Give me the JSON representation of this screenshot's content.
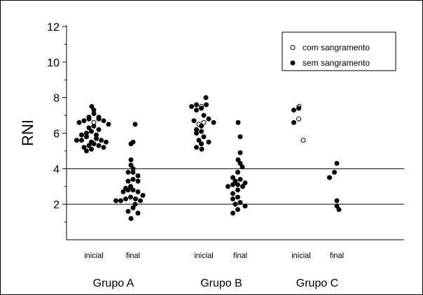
{
  "chart_data": {
    "type": "scatter",
    "ylabel": "RNI",
    "ylim": [
      0,
      12
    ],
    "yticks": [
      2,
      4,
      6,
      8,
      10,
      12
    ],
    "reference_lines": [
      2,
      4
    ],
    "groups": [
      {
        "label": "Grupo A",
        "phases": [
          "inicial",
          "final"
        ]
      },
      {
        "label": "Grupo B",
        "phases": [
          "inicial",
          "final"
        ]
      },
      {
        "label": "Grupo C",
        "phases": [
          "inicial",
          "final"
        ]
      }
    ],
    "legend": {
      "placement": "top-right",
      "entries": [
        {
          "label": "com sangramento",
          "marker": "open-circle"
        },
        {
          "label": "sem sangramento",
          "marker": "filled-circle"
        }
      ]
    },
    "series": [
      {
        "name": "com sangramento",
        "marker": "open-circle",
        "points": [
          {
            "group": "Grupo A",
            "phase": "inicial",
            "y": 6.6
          },
          {
            "group": "Grupo A",
            "phase": "inicial",
            "y": 5.5
          },
          {
            "group": "Grupo B",
            "phase": "inicial",
            "y": 7.5
          },
          {
            "group": "Grupo B",
            "phase": "inicial",
            "y": 6.6
          },
          {
            "group": "Grupo B",
            "phase": "inicial",
            "y": 6.5
          },
          {
            "group": "Grupo C",
            "phase": "inicial",
            "y": 7.5
          },
          {
            "group": "Grupo C",
            "phase": "inicial",
            "y": 6.8
          },
          {
            "group": "Grupo C",
            "phase": "inicial",
            "y": 5.6
          }
        ]
      },
      {
        "name": "sem sangramento",
        "marker": "filled-circle",
        "points": [
          {
            "group": "Grupo A",
            "phase": "inicial",
            "y": 7.5
          },
          {
            "group": "Grupo A",
            "phase": "inicial",
            "y": 7.3
          },
          {
            "group": "Grupo A",
            "phase": "inicial",
            "y": 7.1
          },
          {
            "group": "Grupo A",
            "phase": "inicial",
            "y": 6.9
          },
          {
            "group": "Grupo A",
            "phase": "inicial",
            "y": 6.9
          },
          {
            "group": "Grupo A",
            "phase": "inicial",
            "y": 6.8
          },
          {
            "group": "Grupo A",
            "phase": "inicial",
            "y": 6.8
          },
          {
            "group": "Grupo A",
            "phase": "inicial",
            "y": 6.7
          },
          {
            "group": "Grupo A",
            "phase": "inicial",
            "y": 6.7
          },
          {
            "group": "Grupo A",
            "phase": "inicial",
            "y": 6.6
          },
          {
            "group": "Grupo A",
            "phase": "inicial",
            "y": 6.5
          },
          {
            "group": "Grupo A",
            "phase": "inicial",
            "y": 6.4
          },
          {
            "group": "Grupo A",
            "phase": "inicial",
            "y": 6.3
          },
          {
            "group": "Grupo A",
            "phase": "inicial",
            "y": 6.2
          },
          {
            "group": "Grupo A",
            "phase": "inicial",
            "y": 6.1
          },
          {
            "group": "Grupo A",
            "phase": "inicial",
            "y": 6.0
          },
          {
            "group": "Grupo A",
            "phase": "inicial",
            "y": 5.9
          },
          {
            "group": "Grupo A",
            "phase": "inicial",
            "y": 5.9
          },
          {
            "group": "Grupo A",
            "phase": "inicial",
            "y": 5.8
          },
          {
            "group": "Grupo A",
            "phase": "inicial",
            "y": 5.7
          },
          {
            "group": "Grupo A",
            "phase": "inicial",
            "y": 5.6
          },
          {
            "group": "Grupo A",
            "phase": "inicial",
            "y": 5.6
          },
          {
            "group": "Grupo A",
            "phase": "inicial",
            "y": 5.6
          },
          {
            "group": "Grupo A",
            "phase": "inicial",
            "y": 5.5
          },
          {
            "group": "Grupo A",
            "phase": "inicial",
            "y": 5.5
          },
          {
            "group": "Grupo A",
            "phase": "inicial",
            "y": 5.4
          },
          {
            "group": "Grupo A",
            "phase": "inicial",
            "y": 5.3
          },
          {
            "group": "Grupo A",
            "phase": "inicial",
            "y": 5.3
          },
          {
            "group": "Grupo A",
            "phase": "inicial",
            "y": 5.2
          },
          {
            "group": "Grupo A",
            "phase": "inicial",
            "y": 5.2
          },
          {
            "group": "Grupo A",
            "phase": "inicial",
            "y": 5.1
          },
          {
            "group": "Grupo A",
            "phase": "inicial",
            "y": 5.0
          },
          {
            "group": "Grupo A",
            "phase": "final",
            "y": 6.5
          },
          {
            "group": "Grupo A",
            "phase": "final",
            "y": 5.5
          },
          {
            "group": "Grupo A",
            "phase": "final",
            "y": 5.4
          },
          {
            "group": "Grupo A",
            "phase": "final",
            "y": 4.5
          },
          {
            "group": "Grupo A",
            "phase": "final",
            "y": 4.2
          },
          {
            "group": "Grupo A",
            "phase": "final",
            "y": 4.0
          },
          {
            "group": "Grupo A",
            "phase": "final",
            "y": 3.8
          },
          {
            "group": "Grupo A",
            "phase": "final",
            "y": 3.8
          },
          {
            "group": "Grupo A",
            "phase": "final",
            "y": 3.6
          },
          {
            "group": "Grupo A",
            "phase": "final",
            "y": 3.4
          },
          {
            "group": "Grupo A",
            "phase": "final",
            "y": 3.3
          },
          {
            "group": "Grupo A",
            "phase": "final",
            "y": 3.3
          },
          {
            "group": "Grupo A",
            "phase": "final",
            "y": 3.0
          },
          {
            "group": "Grupo A",
            "phase": "final",
            "y": 2.9
          },
          {
            "group": "Grupo A",
            "phase": "final",
            "y": 2.8
          },
          {
            "group": "Grupo A",
            "phase": "final",
            "y": 2.8
          },
          {
            "group": "Grupo A",
            "phase": "final",
            "y": 2.7
          },
          {
            "group": "Grupo A",
            "phase": "final",
            "y": 2.7
          },
          {
            "group": "Grupo A",
            "phase": "final",
            "y": 2.5
          },
          {
            "group": "Grupo A",
            "phase": "final",
            "y": 2.4
          },
          {
            "group": "Grupo A",
            "phase": "final",
            "y": 2.3
          },
          {
            "group": "Grupo A",
            "phase": "final",
            "y": 2.3
          },
          {
            "group": "Grupo A",
            "phase": "final",
            "y": 2.2
          },
          {
            "group": "Grupo A",
            "phase": "final",
            "y": 2.2
          },
          {
            "group": "Grupo A",
            "phase": "final",
            "y": 2.2
          },
          {
            "group": "Grupo A",
            "phase": "final",
            "y": 2.0
          },
          {
            "group": "Grupo A",
            "phase": "final",
            "y": 1.8
          },
          {
            "group": "Grupo A",
            "phase": "final",
            "y": 1.6
          },
          {
            "group": "Grupo A",
            "phase": "final",
            "y": 1.5
          },
          {
            "group": "Grupo A",
            "phase": "final",
            "y": 1.2
          },
          {
            "group": "Grupo B",
            "phase": "inicial",
            "y": 8.0
          },
          {
            "group": "Grupo B",
            "phase": "inicial",
            "y": 7.6
          },
          {
            "group": "Grupo B",
            "phase": "inicial",
            "y": 7.6
          },
          {
            "group": "Grupo B",
            "phase": "inicial",
            "y": 7.5
          },
          {
            "group": "Grupo B",
            "phase": "inicial",
            "y": 7.4
          },
          {
            "group": "Grupo B",
            "phase": "inicial",
            "y": 7.3
          },
          {
            "group": "Grupo B",
            "phase": "inicial",
            "y": 7.0
          },
          {
            "group": "Grupo B",
            "phase": "inicial",
            "y": 6.8
          },
          {
            "group": "Grupo B",
            "phase": "inicial",
            "y": 6.7
          },
          {
            "group": "Grupo B",
            "phase": "inicial",
            "y": 6.6
          },
          {
            "group": "Grupo B",
            "phase": "inicial",
            "y": 6.4
          },
          {
            "group": "Grupo B",
            "phase": "inicial",
            "y": 6.2
          },
          {
            "group": "Grupo B",
            "phase": "inicial",
            "y": 6.1
          },
          {
            "group": "Grupo B",
            "phase": "inicial",
            "y": 6.0
          },
          {
            "group": "Grupo B",
            "phase": "inicial",
            "y": 5.8
          },
          {
            "group": "Grupo B",
            "phase": "inicial",
            "y": 5.6
          },
          {
            "group": "Grupo B",
            "phase": "inicial",
            "y": 5.5
          },
          {
            "group": "Grupo B",
            "phase": "inicial",
            "y": 5.4
          },
          {
            "group": "Grupo B",
            "phase": "inicial",
            "y": 5.2
          },
          {
            "group": "Grupo B",
            "phase": "inicial",
            "y": 5.1
          },
          {
            "group": "Grupo B",
            "phase": "final",
            "y": 6.6
          },
          {
            "group": "Grupo B",
            "phase": "final",
            "y": 5.8
          },
          {
            "group": "Grupo B",
            "phase": "final",
            "y": 4.9
          },
          {
            "group": "Grupo B",
            "phase": "final",
            "y": 4.5
          },
          {
            "group": "Grupo B",
            "phase": "final",
            "y": 4.3
          },
          {
            "group": "Grupo B",
            "phase": "final",
            "y": 4.1
          },
          {
            "group": "Grupo B",
            "phase": "final",
            "y": 3.8
          },
          {
            "group": "Grupo B",
            "phase": "final",
            "y": 3.5
          },
          {
            "group": "Grupo B",
            "phase": "final",
            "y": 3.4
          },
          {
            "group": "Grupo B",
            "phase": "final",
            "y": 3.3
          },
          {
            "group": "Grupo B",
            "phase": "final",
            "y": 3.2
          },
          {
            "group": "Grupo B",
            "phase": "final",
            "y": 3.1
          },
          {
            "group": "Grupo B",
            "phase": "final",
            "y": 3.1
          },
          {
            "group": "Grupo B",
            "phase": "final",
            "y": 3.0
          },
          {
            "group": "Grupo B",
            "phase": "final",
            "y": 3.0
          },
          {
            "group": "Grupo B",
            "phase": "final",
            "y": 2.8
          },
          {
            "group": "Grupo B",
            "phase": "final",
            "y": 2.6
          },
          {
            "group": "Grupo B",
            "phase": "final",
            "y": 2.4
          },
          {
            "group": "Grupo B",
            "phase": "final",
            "y": 2.3
          },
          {
            "group": "Grupo B",
            "phase": "final",
            "y": 2.1
          },
          {
            "group": "Grupo B",
            "phase": "final",
            "y": 2.0
          },
          {
            "group": "Grupo B",
            "phase": "final",
            "y": 1.9
          },
          {
            "group": "Grupo B",
            "phase": "final",
            "y": 1.7
          },
          {
            "group": "Grupo B",
            "phase": "final",
            "y": 1.5
          },
          {
            "group": "Grupo C",
            "phase": "inicial",
            "y": 7.4
          },
          {
            "group": "Grupo C",
            "phase": "inicial",
            "y": 7.3
          },
          {
            "group": "Grupo C",
            "phase": "inicial",
            "y": 6.6
          },
          {
            "group": "Grupo C",
            "phase": "final",
            "y": 4.3
          },
          {
            "group": "Grupo C",
            "phase": "final",
            "y": 3.8
          },
          {
            "group": "Grupo C",
            "phase": "final",
            "y": 3.5
          },
          {
            "group": "Grupo C",
            "phase": "final",
            "y": 2.2
          },
          {
            "group": "Grupo C",
            "phase": "final",
            "y": 1.9
          },
          {
            "group": "Grupo C",
            "phase": "final",
            "y": 1.7
          }
        ]
      }
    ]
  }
}
